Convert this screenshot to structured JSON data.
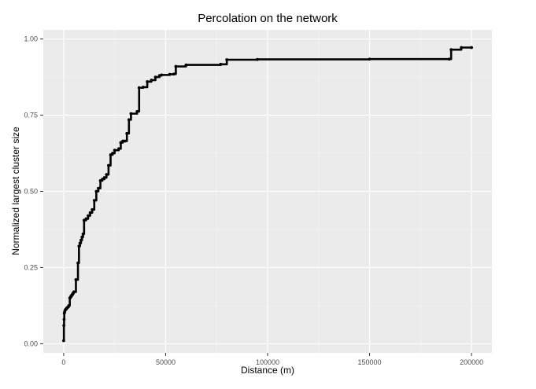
{
  "chart_data": {
    "type": "line",
    "title": "Percolation on the network",
    "xlabel": "Distance (m)",
    "ylabel": "Normalized largest cluster size",
    "xlim": [
      -10000,
      210000
    ],
    "ylim": [
      -0.03,
      1.03
    ],
    "x_ticks": [
      0,
      50000,
      100000,
      150000,
      200000
    ],
    "x_tick_labels": [
      "0",
      "50000",
      "100000",
      "150000",
      "200000"
    ],
    "y_ticks": [
      0.0,
      0.25,
      0.5,
      0.75,
      1.0
    ],
    "y_tick_labels": [
      "0.00",
      "0.25",
      "0.50",
      "0.75",
      "1.00"
    ],
    "grid": true,
    "step": true,
    "colors": {
      "panel": "#ebebeb",
      "grid_major": "#ffffff",
      "grid_minor": "#f5f5f5",
      "series": "#000000",
      "text": "#000000",
      "tick_text": "#4d4d4d"
    },
    "series": [
      {
        "x": [
          0,
          100,
          200,
          300,
          500,
          700,
          1000,
          1500,
          2000,
          2500,
          3000,
          3500,
          4000,
          4500,
          5000,
          6000,
          7000,
          7500,
          8000,
          8500,
          9000,
          9500,
          10000,
          11000,
          12000,
          13000,
          14000,
          15000,
          16000,
          17000,
          18000,
          19000,
          20000,
          21000,
          22000,
          23000,
          24000,
          25000,
          27000,
          28000,
          29000,
          30000,
          31000,
          32000,
          33000,
          36000,
          37000,
          39000,
          41000,
          43000,
          45000,
          47000,
          48000,
          52000,
          54000,
          55000,
          60000,
          77000,
          80000,
          95000,
          150000,
          189000,
          190000,
          195000,
          200000
        ],
        "y": [
          0.01,
          0.06,
          0.08,
          0.1,
          0.105,
          0.11,
          0.113,
          0.117,
          0.12,
          0.125,
          0.15,
          0.155,
          0.16,
          0.165,
          0.17,
          0.21,
          0.265,
          0.32,
          0.33,
          0.34,
          0.35,
          0.36,
          0.405,
          0.41,
          0.42,
          0.43,
          0.44,
          0.47,
          0.5,
          0.51,
          0.535,
          0.54,
          0.545,
          0.555,
          0.585,
          0.62,
          0.625,
          0.635,
          0.64,
          0.66,
          0.665,
          0.665,
          0.69,
          0.735,
          0.755,
          0.762,
          0.84,
          0.842,
          0.86,
          0.865,
          0.875,
          0.88,
          0.882,
          0.884,
          0.885,
          0.91,
          0.915,
          0.917,
          0.932,
          0.933,
          0.934,
          0.934,
          0.965,
          0.972,
          0.972
        ],
        "name": ""
      }
    ]
  }
}
